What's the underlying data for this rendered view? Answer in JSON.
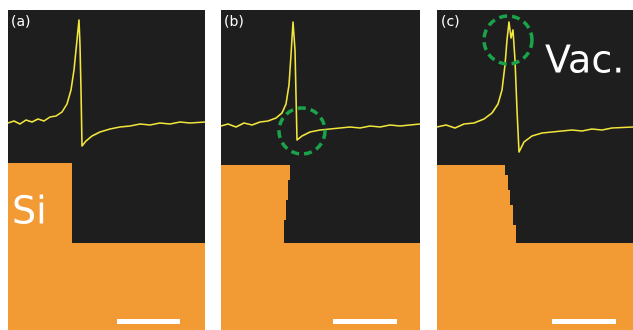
{
  "panels": [
    {
      "label": "(a)"
    },
    {
      "label": "(b)"
    },
    {
      "label": "(c)"
    }
  ],
  "annotations": {
    "material": "Si",
    "vacuum": "Vac."
  }
}
